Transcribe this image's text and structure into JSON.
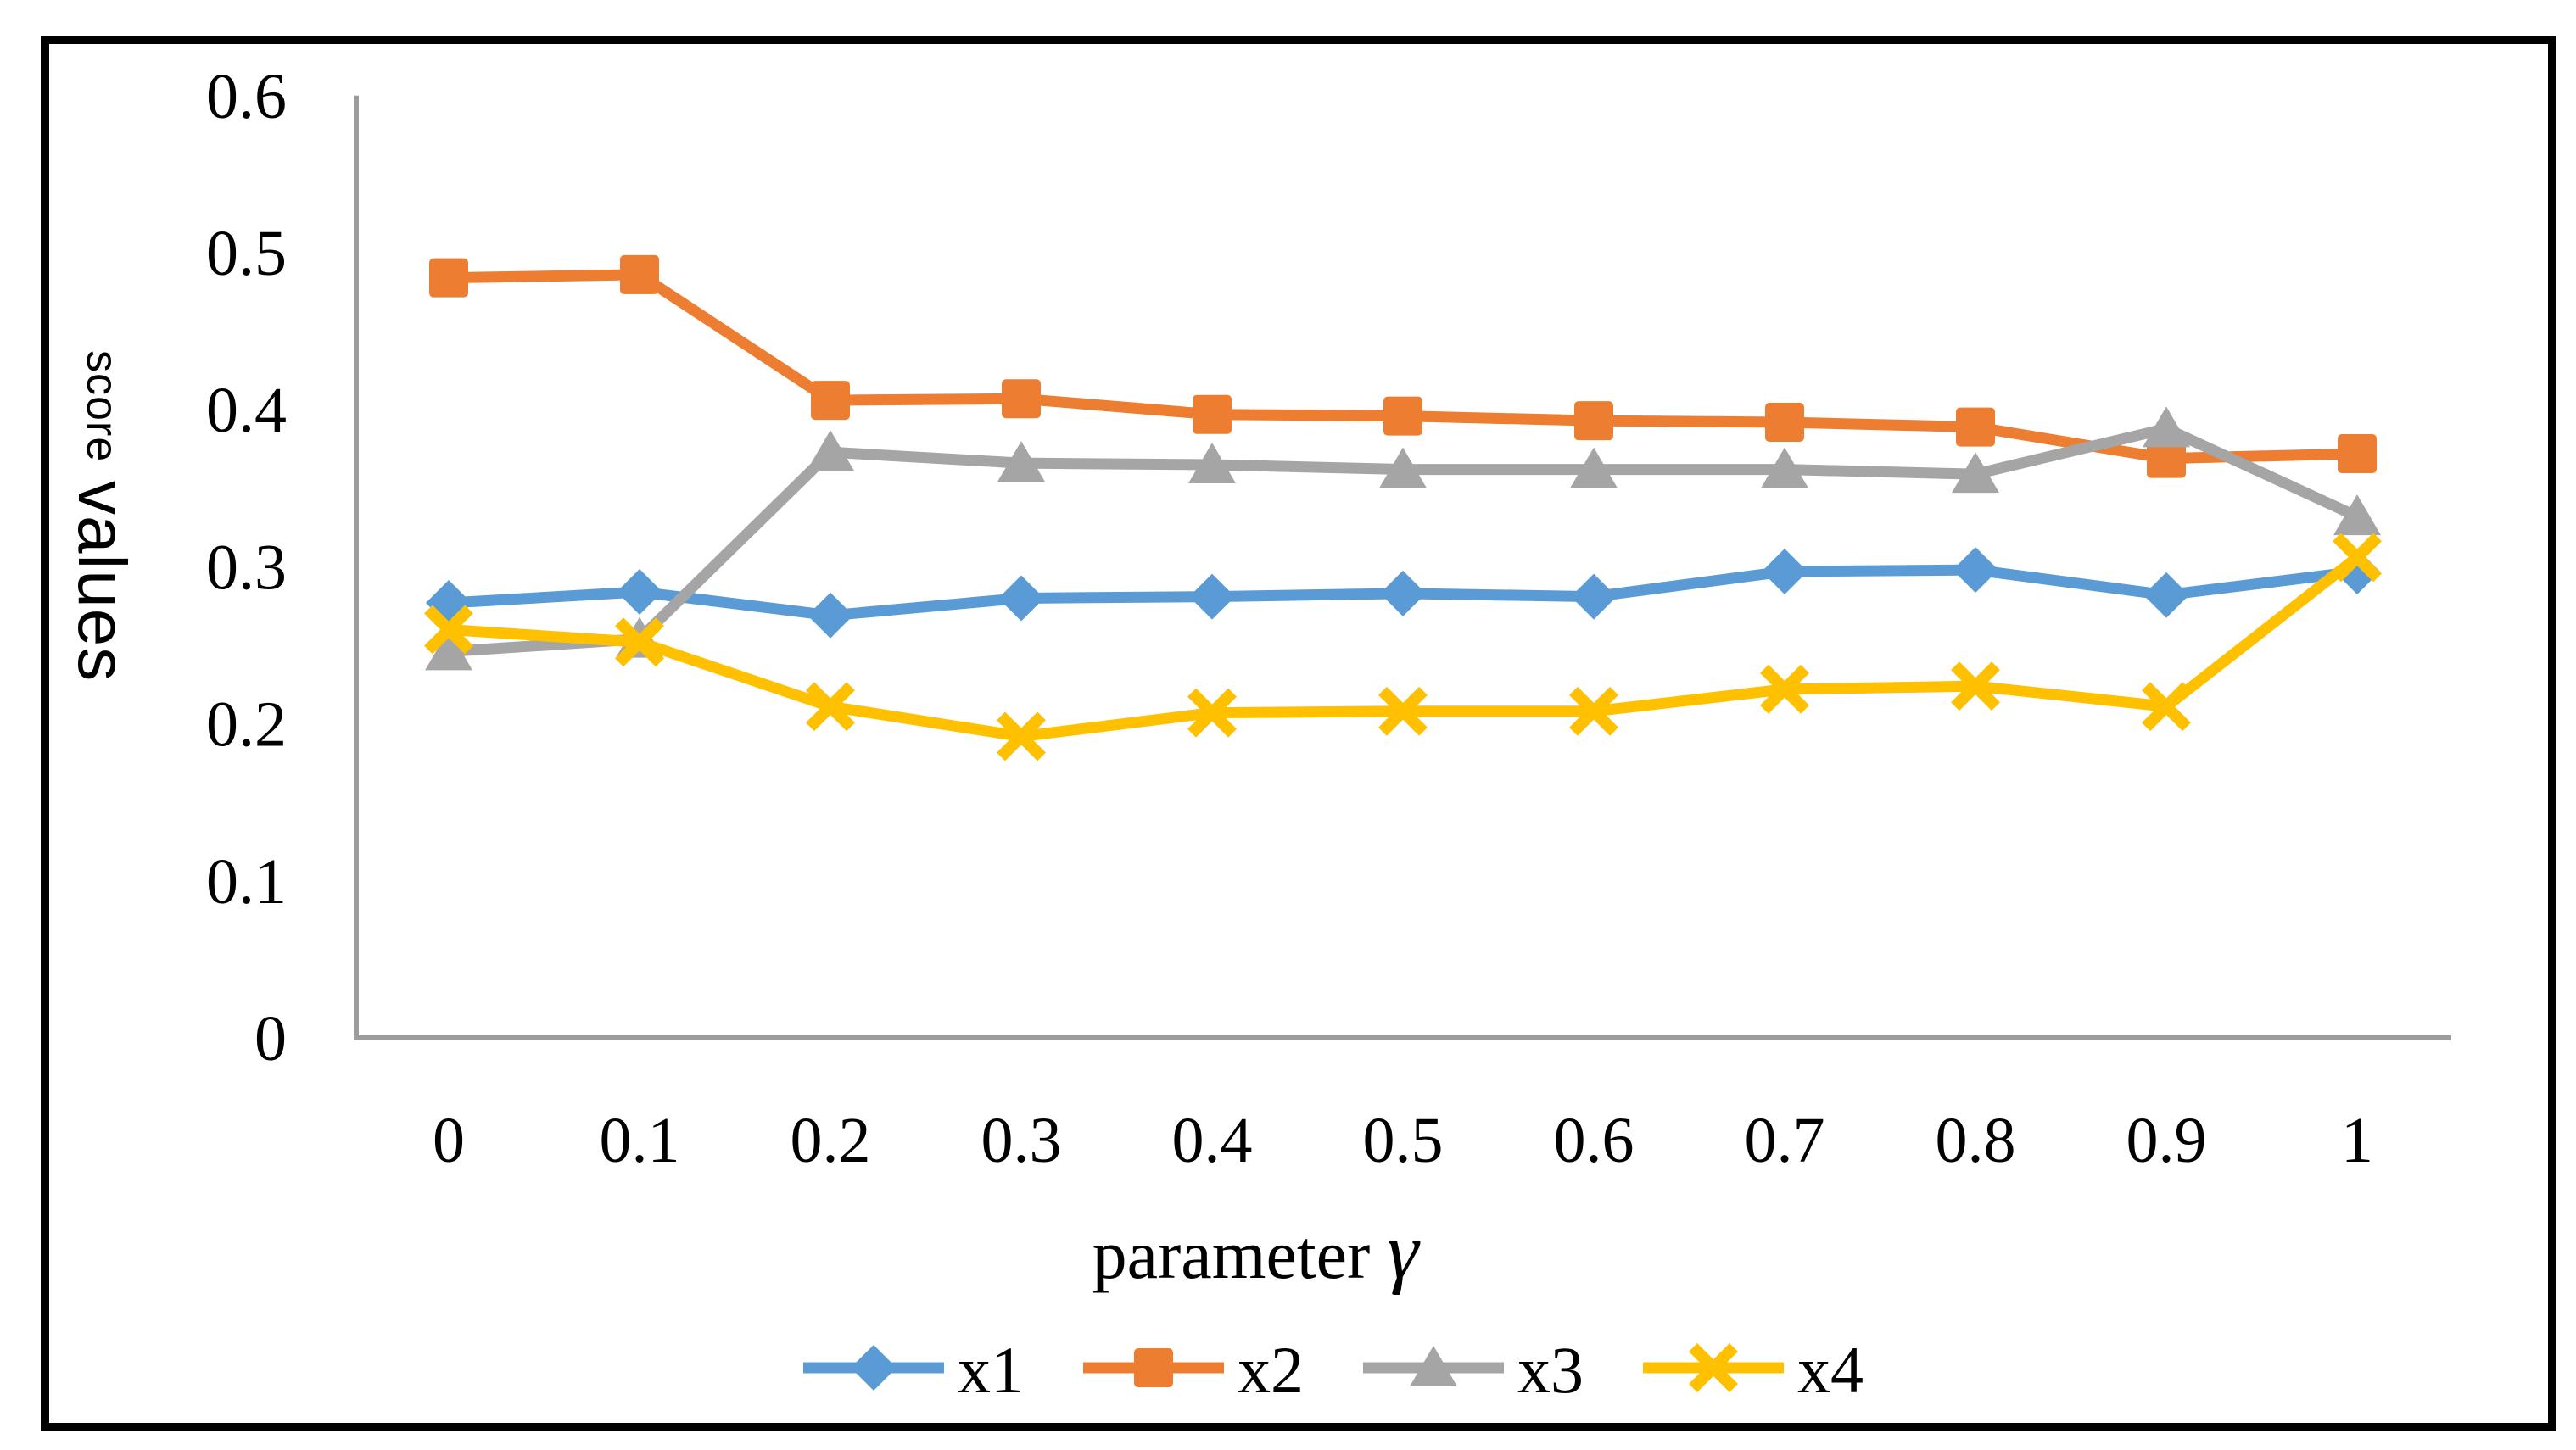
{
  "figure": {
    "y_axis_title_small": "score",
    "y_axis_title_large": "values",
    "x_axis_title_word": "parameter",
    "x_axis_title_symbol": "γ"
  },
  "chart_data": {
    "type": "line",
    "title": "",
    "xlabel": "parameter γ",
    "ylabel": "score values",
    "grid": false,
    "legend_position": "bottom",
    "xlim": [
      0,
      1
    ],
    "ylim": [
      0,
      0.6
    ],
    "x_tick_labels": [
      "0",
      "0.1",
      "0.2",
      "0.3",
      "0.4",
      "0.5",
      "0.6",
      "0.7",
      "0.8",
      "0.9",
      "1"
    ],
    "y_tick_labels": [
      "0",
      "0.1",
      "0.2",
      "0.3",
      "0.4",
      "0.5",
      "0.6"
    ],
    "x": [
      0,
      0.1,
      0.2,
      0.3,
      0.4,
      0.5,
      0.6,
      0.7,
      0.8,
      0.9,
      1
    ],
    "series": [
      {
        "name": "x1",
        "color": "#5B9BD5",
        "marker": "diamond",
        "values": [
          0.277,
          0.284,
          0.269,
          0.28,
          0.281,
          0.283,
          0.281,
          0.297,
          0.298,
          0.282,
          0.297
        ]
      },
      {
        "name": "x2",
        "color": "#ED7D31",
        "marker": "square",
        "values": [
          0.484,
          0.486,
          0.406,
          0.407,
          0.397,
          0.396,
          0.393,
          0.392,
          0.389,
          0.369,
          0.372
        ]
      },
      {
        "name": "x3",
        "color": "#A5A5A5",
        "marker": "triangle",
        "values": [
          0.246,
          0.254,
          0.373,
          0.366,
          0.365,
          0.362,
          0.362,
          0.362,
          0.359,
          0.388,
          0.332
        ]
      },
      {
        "name": "x4",
        "color": "#FFC000",
        "marker": "x",
        "values": [
          0.26,
          0.252,
          0.211,
          0.192,
          0.207,
          0.208,
          0.208,
          0.222,
          0.224,
          0.211,
          0.306
        ]
      }
    ],
    "axis_color": "#9C9C9C",
    "text_color": "#000000",
    "background_color": "#FFFFFF"
  }
}
